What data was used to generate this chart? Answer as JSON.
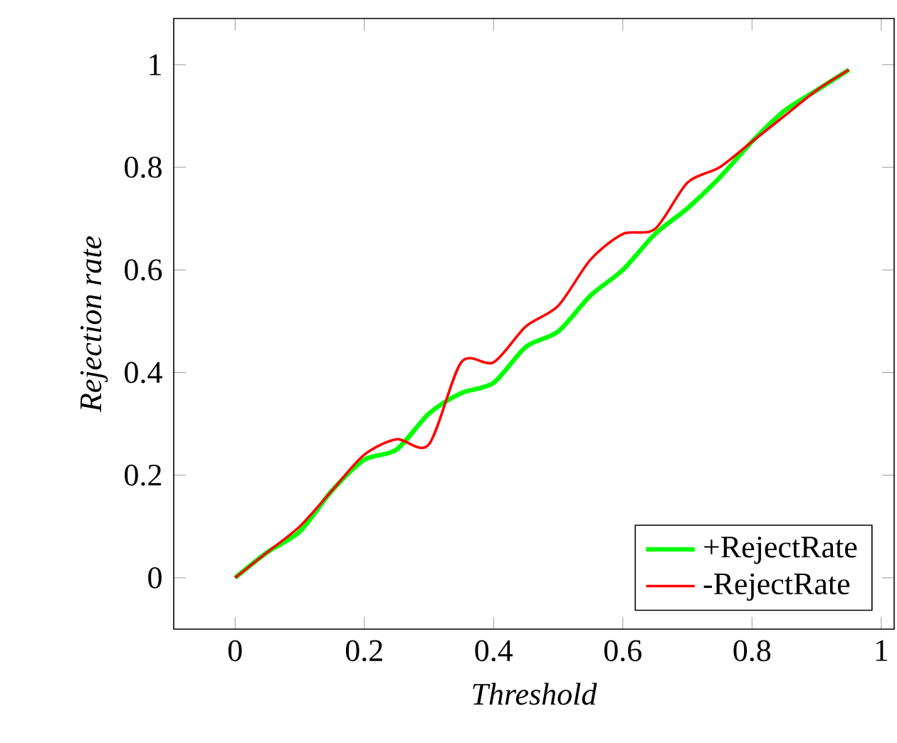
{
  "chart_data": {
    "type": "line",
    "xlabel": "Threshold",
    "ylabel": "Rejection rate",
    "x": [
      0,
      0.05,
      0.1,
      0.15,
      0.2,
      0.25,
      0.3,
      0.35,
      0.4,
      0.45,
      0.5,
      0.55,
      0.6,
      0.65,
      0.7,
      0.75,
      0.8,
      0.85,
      0.9,
      0.95
    ],
    "series": [
      {
        "name": "+RejectRate",
        "color": "#00ff00",
        "values": [
          0,
          0.05,
          0.09,
          0.17,
          0.23,
          0.25,
          0.32,
          0.36,
          0.38,
          0.45,
          0.48,
          0.55,
          0.6,
          0.67,
          0.72,
          0.78,
          0.85,
          0.91,
          0.95,
          0.99
        ]
      },
      {
        "name": "-RejectRate",
        "color": "#ff0000",
        "values": [
          0,
          0.05,
          0.1,
          0.17,
          0.24,
          0.27,
          0.26,
          0.42,
          0.42,
          0.49,
          0.53,
          0.62,
          0.67,
          0.68,
          0.77,
          0.8,
          0.85,
          0.9,
          0.95,
          0.99
        ]
      }
    ],
    "xlim": [
      -0.095,
      1.02
    ],
    "ylim": [
      -0.1,
      1.09
    ],
    "xticks": [
      0,
      0.2,
      0.4,
      0.6,
      0.8,
      1
    ],
    "yticks": [
      0,
      0.2,
      0.4,
      0.6,
      0.8,
      1
    ],
    "legend": "bottom right",
    "marker": "none",
    "line_style": "solid",
    "grid": false
  }
}
